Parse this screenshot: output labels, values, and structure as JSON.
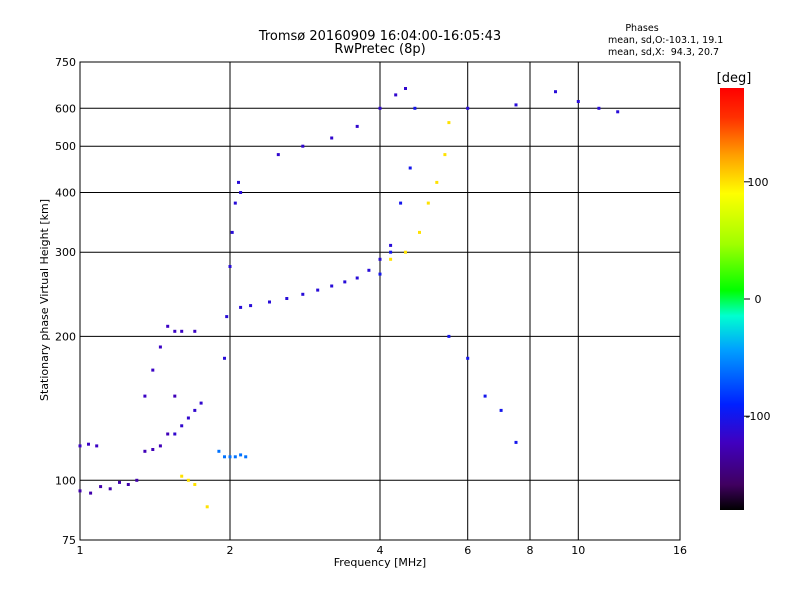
{
  "chart_data": {
    "type": "scatter",
    "title": "Tromsø 20160909 16:04:00-16:05:43",
    "subtitle": "RwPretec (8p)",
    "info": {
      "heading": "Phases",
      "line1": "mean, sd,O:-103.1, 19.1",
      "line2": "mean, sd,X:  94.3, 20.7"
    },
    "xlabel": "Frequency [MHz]",
    "ylabel": "Stationary phase Virtual Height [km]",
    "x_scale": "log",
    "y_scale": "log",
    "xlim": [
      1,
      16
    ],
    "ylim": [
      75,
      750
    ],
    "x_ticks": [
      1,
      2,
      4,
      6,
      8,
      10,
      16
    ],
    "x_tick_labels": [
      "1",
      "2",
      "4",
      "6",
      "8",
      "10",
      "16"
    ],
    "y_ticks": [
      75,
      100,
      200,
      300,
      400,
      500,
      600,
      750
    ],
    "y_tick_labels": [
      "75",
      "100",
      "200",
      "300",
      "400",
      "500",
      "600",
      "750"
    ],
    "x_gridlines": [
      2,
      4,
      6,
      8,
      10
    ],
    "y_gridlines": [
      100,
      200,
      300,
      400,
      500,
      600
    ],
    "colorbar": {
      "label": "[deg]",
      "range": [
        -180,
        180
      ],
      "ticks": [
        100,
        0,
        -100
      ],
      "tick_labels": [
        "100",
        "0",
        "-100"
      ]
    },
    "series": [
      {
        "x": [
          1.0,
          1.05,
          1.1,
          1.15,
          1.2,
          1.25,
          1.3
        ],
        "y": [
          95,
          94,
          97,
          96,
          99,
          98,
          100
        ],
        "phase": -130
      },
      {
        "x": [
          1.0,
          1.04,
          1.08
        ],
        "y": [
          118,
          119,
          118
        ],
        "phase": -120
      },
      {
        "x": [
          1.35,
          1.4,
          1.45,
          1.5,
          1.55
        ],
        "y": [
          115,
          116,
          118,
          125,
          150
        ],
        "phase": -125
      },
      {
        "x": [
          1.35,
          1.4,
          1.45,
          1.5,
          1.55,
          1.6,
          1.7
        ],
        "y": [
          150,
          170,
          190,
          210,
          205,
          205,
          205
        ],
        "phase": -120
      },
      {
        "x": [
          1.55,
          1.6,
          1.65,
          1.7,
          1.75
        ],
        "y": [
          125,
          130,
          135,
          140,
          145
        ],
        "phase": -115
      },
      {
        "x": [
          1.6,
          1.65,
          1.7,
          1.8
        ],
        "y": [
          102,
          100,
          98,
          88
        ],
        "phase": 100
      },
      {
        "x": [
          1.9,
          1.95,
          2.0,
          2.05,
          2.1,
          2.15
        ],
        "y": [
          115,
          112,
          112,
          112,
          113,
          112
        ],
        "phase": -60
      },
      {
        "x": [
          1.95,
          1.97,
          2.0,
          2.02,
          2.05,
          2.08,
          2.1
        ],
        "y": [
          180,
          220,
          280,
          330,
          380,
          420,
          400
        ],
        "phase": -110
      },
      {
        "x": [
          2.1,
          2.2,
          2.4,
          2.6,
          2.8,
          3.0,
          3.2,
          3.4,
          3.6,
          3.8,
          4.0,
          4.2
        ],
        "y": [
          230,
          232,
          236,
          240,
          245,
          250,
          255,
          260,
          265,
          275,
          290,
          310
        ],
        "phase": -110
      },
      {
        "x": [
          2.5,
          2.8,
          3.2,
          3.6,
          4.0,
          4.3,
          4.5
        ],
        "y": [
          480,
          500,
          520,
          550,
          600,
          640,
          660
        ],
        "phase": -115
      },
      {
        "x": [
          4.0,
          4.2,
          4.4,
          4.6,
          4.7
        ],
        "y": [
          270,
          300,
          380,
          450,
          600
        ],
        "phase": -100
      },
      {
        "x": [
          4.2,
          4.5,
          4.8,
          5.0,
          5.2,
          5.4,
          5.5
        ],
        "y": [
          290,
          300,
          330,
          380,
          420,
          480,
          560
        ],
        "phase": 100
      },
      {
        "x": [
          5.5,
          6.0,
          6.5,
          7.0,
          7.5
        ],
        "y": [
          200,
          180,
          150,
          140,
          120
        ],
        "phase": -100
      },
      {
        "x": [
          6.0,
          7.5,
          9.0,
          10.0,
          11.0,
          12.0
        ],
        "y": [
          600,
          610,
          650,
          620,
          600,
          590
        ],
        "phase": -110
      }
    ]
  }
}
